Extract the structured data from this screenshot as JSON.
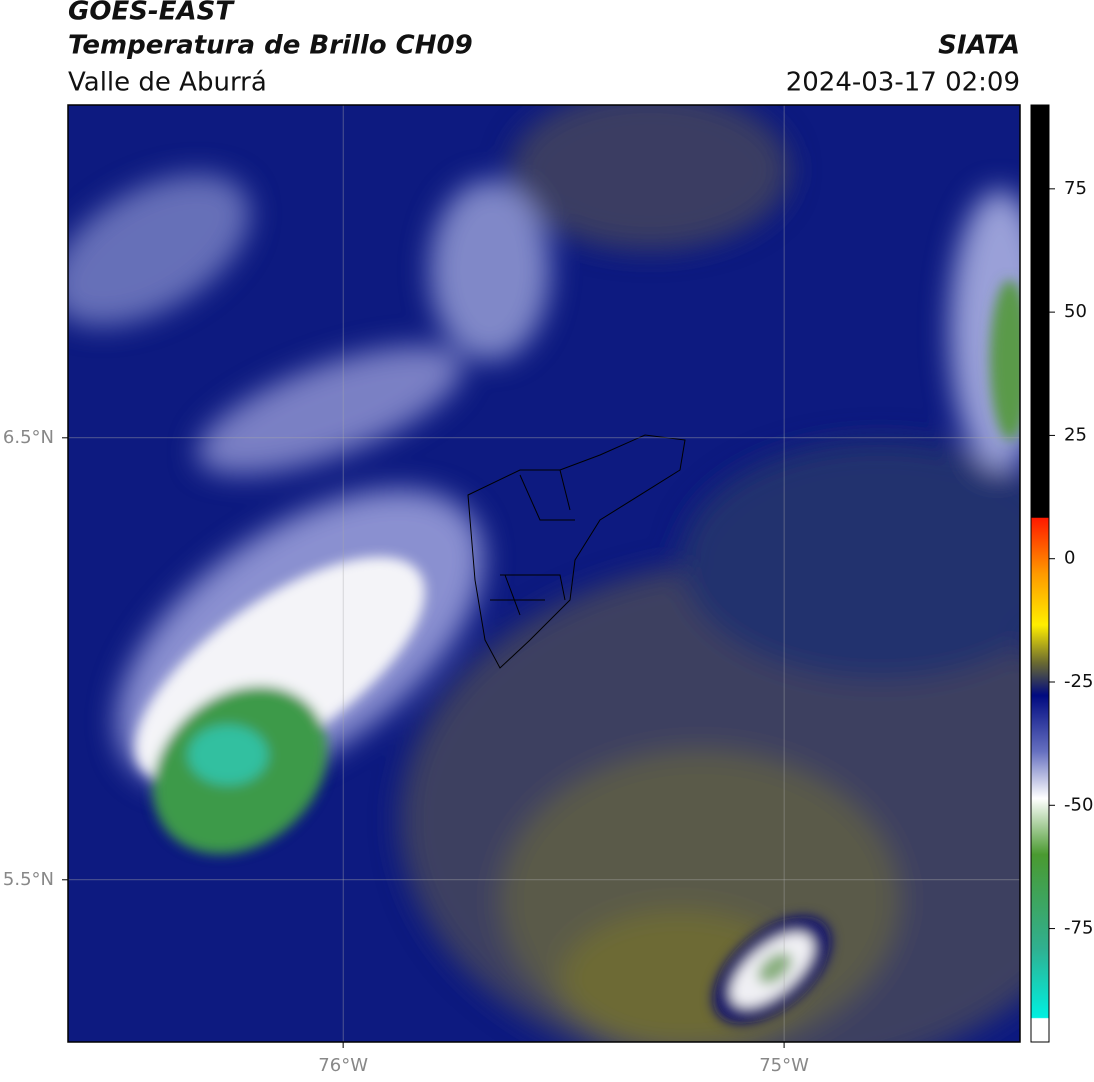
{
  "header": {
    "title": "GOES-EAST",
    "subtitle": "Temperatura de Brillo CH09",
    "region": "Valle de Aburrá",
    "source": "SIATA",
    "timestamp": "2024-03-17 02:09"
  },
  "map": {
    "xlim": [
      -76.624,
      -74.465
    ],
    "ylim": [
      5.133,
      7.253
    ],
    "xticks": [
      {
        "value": -76,
        "label": "76°W"
      },
      {
        "value": -75,
        "label": "75°W"
      }
    ],
    "yticks": [
      {
        "value": 6.5,
        "label": "6.5°N"
      },
      {
        "value": 5.5,
        "label": "5.5°N"
      }
    ],
    "grid": true
  },
  "colorbar": {
    "lim": [
      -98,
      92
    ],
    "ticks": [
      75,
      50,
      25,
      0,
      -25,
      -50,
      -75
    ]
  }
}
